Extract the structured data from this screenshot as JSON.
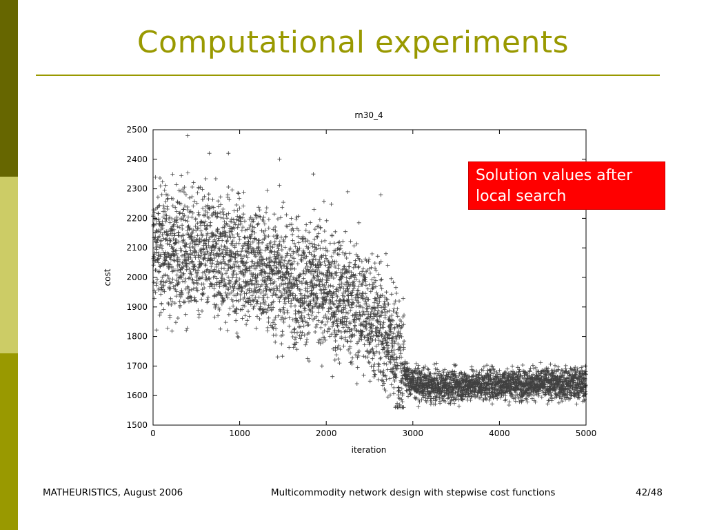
{
  "slide": {
    "title": "Computational experiments",
    "callout": "Solution values after local search",
    "footer_left": "MATHEURISTICS, August 2006",
    "footer_center": "Multicommodity network design with stepwise cost functions",
    "footer_right": "42/48"
  },
  "colors": {
    "accent": "#999900",
    "sidebar_top": "#666600",
    "sidebar_mid": "#cccc66",
    "sidebar_bottom": "#999900",
    "callout_bg": "#ff0000",
    "marker": "#000000"
  },
  "chart_data": {
    "type": "scatter",
    "title": "rn30_4",
    "xlabel": "iteration",
    "ylabel": "cost",
    "xlim": [
      0,
      5000
    ],
    "ylim": [
      1500,
      2500
    ],
    "x_ticks": [
      0,
      1000,
      2000,
      3000,
      4000,
      5000
    ],
    "y_ticks": [
      1500,
      1600,
      1700,
      1800,
      1900,
      2000,
      2100,
      2200,
      2300,
      2400,
      2500
    ],
    "marker": "+",
    "grid": false,
    "series": [
      {
        "values_trend": [
          {
            "x": 0,
            "y": 2100
          },
          {
            "x": 1000,
            "y": 2060
          },
          {
            "x": 1500,
            "y": 2000
          },
          {
            "x": 2000,
            "y": 1960
          },
          {
            "x": 2500,
            "y": 1880
          },
          {
            "x": 2800,
            "y": 1760
          },
          {
            "x": 2950,
            "y": 1650
          },
          {
            "x": 3200,
            "y": 1630
          },
          {
            "x": 4000,
            "y": 1640
          },
          {
            "x": 5000,
            "y": 1640
          }
        ],
        "spread_before_3000": 140,
        "spread_after_3000": 35,
        "n_points": 5000
      }
    ],
    "notable_points": [
      {
        "x": 400,
        "y": 2480
      },
      {
        "x": 650,
        "y": 2420
      },
      {
        "x": 870,
        "y": 2420
      },
      {
        "x": 1460,
        "y": 2400
      },
      {
        "x": 1850,
        "y": 2350
      },
      {
        "x": 2250,
        "y": 2290
      },
      {
        "x": 2630,
        "y": 2280
      },
      {
        "x": 2100,
        "y": 1720
      }
    ]
  }
}
